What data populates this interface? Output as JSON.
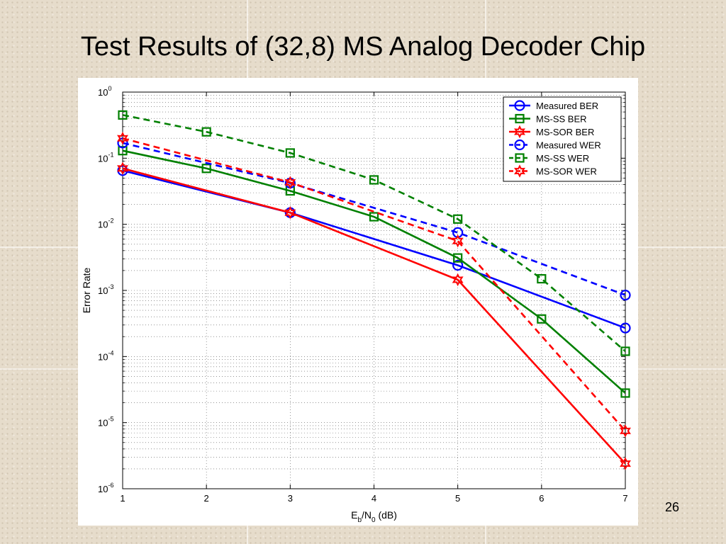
{
  "slide": {
    "title": "Test Results of (32,8) MS Analog Decoder Chip",
    "page_number": "26"
  },
  "chart_data": {
    "type": "line",
    "xlabel_main": "E",
    "xlabel_sub1": "b",
    "xlabel_mid": "/N",
    "xlabel_sub2": "0",
    "xlabel_tail": " (dB)",
    "ylabel": "Error Rate",
    "xlim": [
      1,
      7
    ],
    "ylim": [
      1e-06,
      1
    ],
    "y_scale": "log",
    "grid": true,
    "legend_position": "top-right",
    "x_ticks": [
      "1",
      "2",
      "3",
      "4",
      "5",
      "6",
      "7"
    ],
    "y_ticks": [
      {
        "base": "10",
        "exp": "0"
      },
      {
        "base": "10",
        "exp": "-1"
      },
      {
        "base": "10",
        "exp": "-2"
      },
      {
        "base": "10",
        "exp": "-3"
      },
      {
        "base": "10",
        "exp": "-4"
      },
      {
        "base": "10",
        "exp": "-5"
      },
      {
        "base": "10",
        "exp": "-6"
      }
    ],
    "series": [
      {
        "name": "Measured BER",
        "color": "#0000ff",
        "dash": false,
        "marker": "circle",
        "x": [
          1,
          3,
          5,
          7
        ],
        "y": [
          0.065,
          0.015,
          0.0024,
          0.00027
        ]
      },
      {
        "name": "MS-SS BER",
        "color": "#008000",
        "dash": false,
        "marker": "square",
        "x": [
          1,
          2,
          3,
          4,
          5,
          6,
          7
        ],
        "y": [
          0.13,
          0.07,
          0.032,
          0.013,
          0.0031,
          0.00037,
          2.8e-05
        ]
      },
      {
        "name": "MS-SOR BER",
        "color": "#ff0000",
        "dash": false,
        "marker": "hexagram",
        "x": [
          1,
          3,
          5,
          7
        ],
        "y": [
          0.07,
          0.015,
          0.00145,
          2.4e-06
        ]
      },
      {
        "name": "Measured WER",
        "color": "#0000ff",
        "dash": true,
        "marker": "circle",
        "x": [
          1,
          3,
          5,
          7
        ],
        "y": [
          0.17,
          0.042,
          0.0075,
          0.00085
        ]
      },
      {
        "name": "MS-SS WER",
        "color": "#008000",
        "dash": true,
        "marker": "square",
        "x": [
          1,
          2,
          3,
          4,
          5,
          6,
          7
        ],
        "y": [
          0.45,
          0.25,
          0.12,
          0.047,
          0.012,
          0.0015,
          0.00012
        ]
      },
      {
        "name": "MS-SOR WER",
        "color": "#ff0000",
        "dash": true,
        "marker": "hexagram",
        "x": [
          1,
          3,
          5,
          7
        ],
        "y": [
          0.2,
          0.043,
          0.0056,
          7.5e-06
        ]
      }
    ]
  }
}
